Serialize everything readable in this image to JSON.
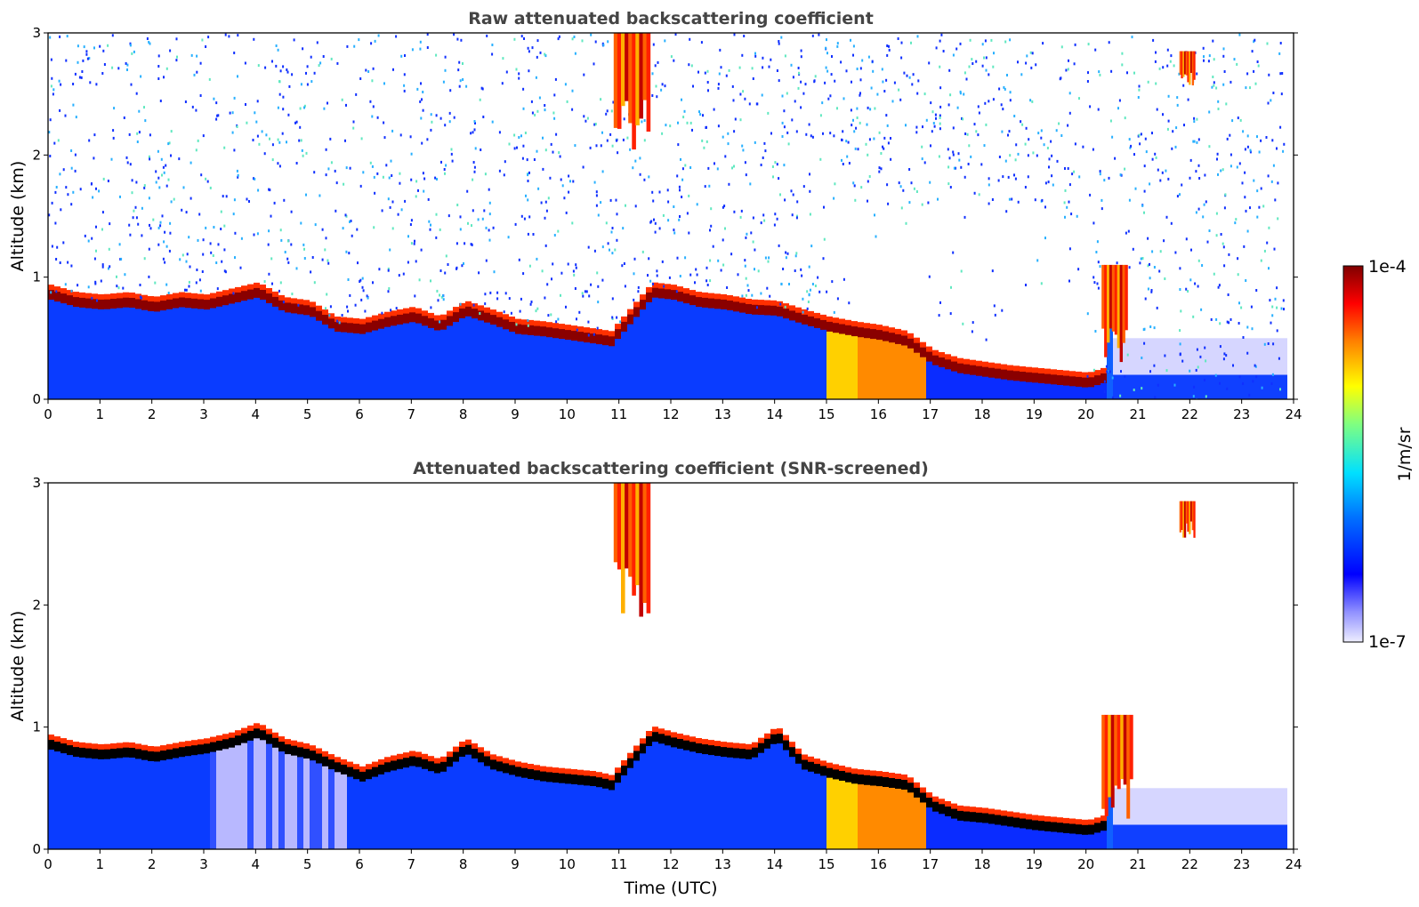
{
  "chart_data": [
    {
      "type": "heatmap",
      "title": "Raw attenuated backscattering coefficient",
      "xlabel": "",
      "ylabel": "Altitude (km)",
      "xlim": [
        0,
        24
      ],
      "ylim": [
        0,
        3
      ],
      "xticks": [
        "0",
        "1",
        "2",
        "3",
        "4",
        "5",
        "6",
        "7",
        "8",
        "9",
        "10",
        "11",
        "12",
        "13",
        "14",
        "15",
        "16",
        "17",
        "18",
        "19",
        "20",
        "21",
        "22",
        "23",
        "24"
      ],
      "yticks": [
        "0",
        "1",
        "2",
        "3"
      ],
      "layer_top_km": [
        [
          0,
          0.88
        ],
        [
          0.5,
          0.82
        ],
        [
          1,
          0.8
        ],
        [
          1.5,
          0.82
        ],
        [
          2,
          0.78
        ],
        [
          2.5,
          0.82
        ],
        [
          3,
          0.8
        ],
        [
          3.5,
          0.85
        ],
        [
          4,
          0.9
        ],
        [
          4.5,
          0.78
        ],
        [
          5,
          0.75
        ],
        [
          5.5,
          0.62
        ],
        [
          6,
          0.6
        ],
        [
          6.5,
          0.66
        ],
        [
          7,
          0.7
        ],
        [
          7.5,
          0.62
        ],
        [
          8,
          0.75
        ],
        [
          8.5,
          0.68
        ],
        [
          9,
          0.6
        ],
        [
          9.5,
          0.58
        ],
        [
          10,
          0.55
        ],
        [
          10.5,
          0.52
        ],
        [
          10.8,
          0.5
        ],
        [
          11.6,
          0.9
        ],
        [
          12,
          0.88
        ],
        [
          12.5,
          0.82
        ],
        [
          13,
          0.8
        ],
        [
          13.5,
          0.76
        ],
        [
          14,
          0.75
        ],
        [
          14.5,
          0.68
        ],
        [
          15,
          0.62
        ],
        [
          15.5,
          0.58
        ],
        [
          16,
          0.55
        ],
        [
          16.5,
          0.5
        ],
        [
          17,
          0.35
        ],
        [
          17.5,
          0.28
        ],
        [
          18,
          0.25
        ],
        [
          18.5,
          0.22
        ],
        [
          19,
          0.2
        ],
        [
          19.5,
          0.18
        ],
        [
          20,
          0.16
        ],
        [
          20.3,
          0.2
        ]
      ],
      "features": [
        {
          "name": "boundary-layer aerosol top",
          "x_range": [
            0,
            20.3
          ],
          "alt_km": [
            0.1,
            0.9
          ]
        },
        {
          "name": "cloud",
          "x_range": [
            10.9,
            11.6
          ],
          "alt_km": [
            2.0,
            3.0
          ]
        },
        {
          "name": "cloud",
          "x_range": [
            21.8,
            22.1
          ],
          "alt_km": [
            2.55,
            2.85
          ]
        },
        {
          "name": "cloud",
          "x_range": [
            20.3,
            20.8
          ],
          "alt_km": [
            0.2,
            1.1
          ]
        }
      ],
      "colorbar": {
        "label": "1/m/sr",
        "min_label": "1e-7",
        "max_label": "1e-4",
        "scale": "log"
      }
    },
    {
      "type": "heatmap",
      "title": "Attenuated backscattering coefficient (SNR-screened)",
      "xlabel": "Time (UTC)",
      "ylabel": "Altitude (km)",
      "xlim": [
        0,
        24
      ],
      "ylim": [
        0,
        3
      ],
      "xticks": [
        "0",
        "1",
        "2",
        "3",
        "4",
        "5",
        "6",
        "7",
        "8",
        "9",
        "10",
        "11",
        "12",
        "13",
        "14",
        "15",
        "16",
        "17",
        "18",
        "19",
        "20",
        "21",
        "22",
        "23",
        "24"
      ],
      "yticks": [
        "0",
        "1",
        "2",
        "3"
      ],
      "layer_top_km": [
        [
          0,
          0.88
        ],
        [
          0.5,
          0.82
        ],
        [
          1,
          0.8
        ],
        [
          1.5,
          0.82
        ],
        [
          2,
          0.78
        ],
        [
          2.5,
          0.82
        ],
        [
          3,
          0.85
        ],
        [
          3.5,
          0.9
        ],
        [
          4,
          0.98
        ],
        [
          4.5,
          0.85
        ],
        [
          5,
          0.8
        ],
        [
          5.5,
          0.7
        ],
        [
          6,
          0.62
        ],
        [
          6.5,
          0.7
        ],
        [
          7,
          0.75
        ],
        [
          7.5,
          0.68
        ],
        [
          8,
          0.85
        ],
        [
          8.5,
          0.72
        ],
        [
          9,
          0.66
        ],
        [
          9.5,
          0.62
        ],
        [
          10,
          0.6
        ],
        [
          10.5,
          0.58
        ],
        [
          10.8,
          0.55
        ],
        [
          11.6,
          0.95
        ],
        [
          12,
          0.9
        ],
        [
          12.5,
          0.85
        ],
        [
          13,
          0.82
        ],
        [
          13.5,
          0.8
        ],
        [
          14,
          0.95
        ],
        [
          14.5,
          0.72
        ],
        [
          15,
          0.65
        ],
        [
          15.5,
          0.6
        ],
        [
          16,
          0.58
        ],
        [
          16.5,
          0.55
        ],
        [
          17,
          0.38
        ],
        [
          17.5,
          0.3
        ],
        [
          18,
          0.28
        ],
        [
          18.5,
          0.25
        ],
        [
          19,
          0.22
        ],
        [
          19.5,
          0.2
        ],
        [
          20,
          0.18
        ],
        [
          20.3,
          0.22
        ]
      ],
      "features": [
        {
          "name": "boundary-layer aerosol top",
          "x_range": [
            0,
            20.3
          ],
          "alt_km": [
            0.1,
            1.0
          ]
        },
        {
          "name": "cloud",
          "x_range": [
            10.9,
            11.6
          ],
          "alt_km": [
            1.9,
            3.0
          ]
        },
        {
          "name": "cloud",
          "x_range": [
            21.8,
            22.1
          ],
          "alt_km": [
            2.55,
            2.85
          ]
        },
        {
          "name": "cloud",
          "x_range": [
            20.3,
            20.9
          ],
          "alt_km": [
            0.2,
            1.1
          ]
        }
      ],
      "colorbar": {
        "label": "1/m/sr",
        "min_label": "1e-7",
        "max_label": "1e-4",
        "scale": "log"
      }
    }
  ],
  "colors": {
    "layer_dark_red": "#7f0000",
    "screened_black": "#000000",
    "blue_fill": "#0a2cff",
    "noise_light_blue": "#2ab6ff",
    "residual_layer_lavender": "#c8c8ff"
  },
  "colorbar_labels": {
    "top": "1e-4",
    "bottom": "1e-7",
    "unit": "1/m/sr"
  }
}
